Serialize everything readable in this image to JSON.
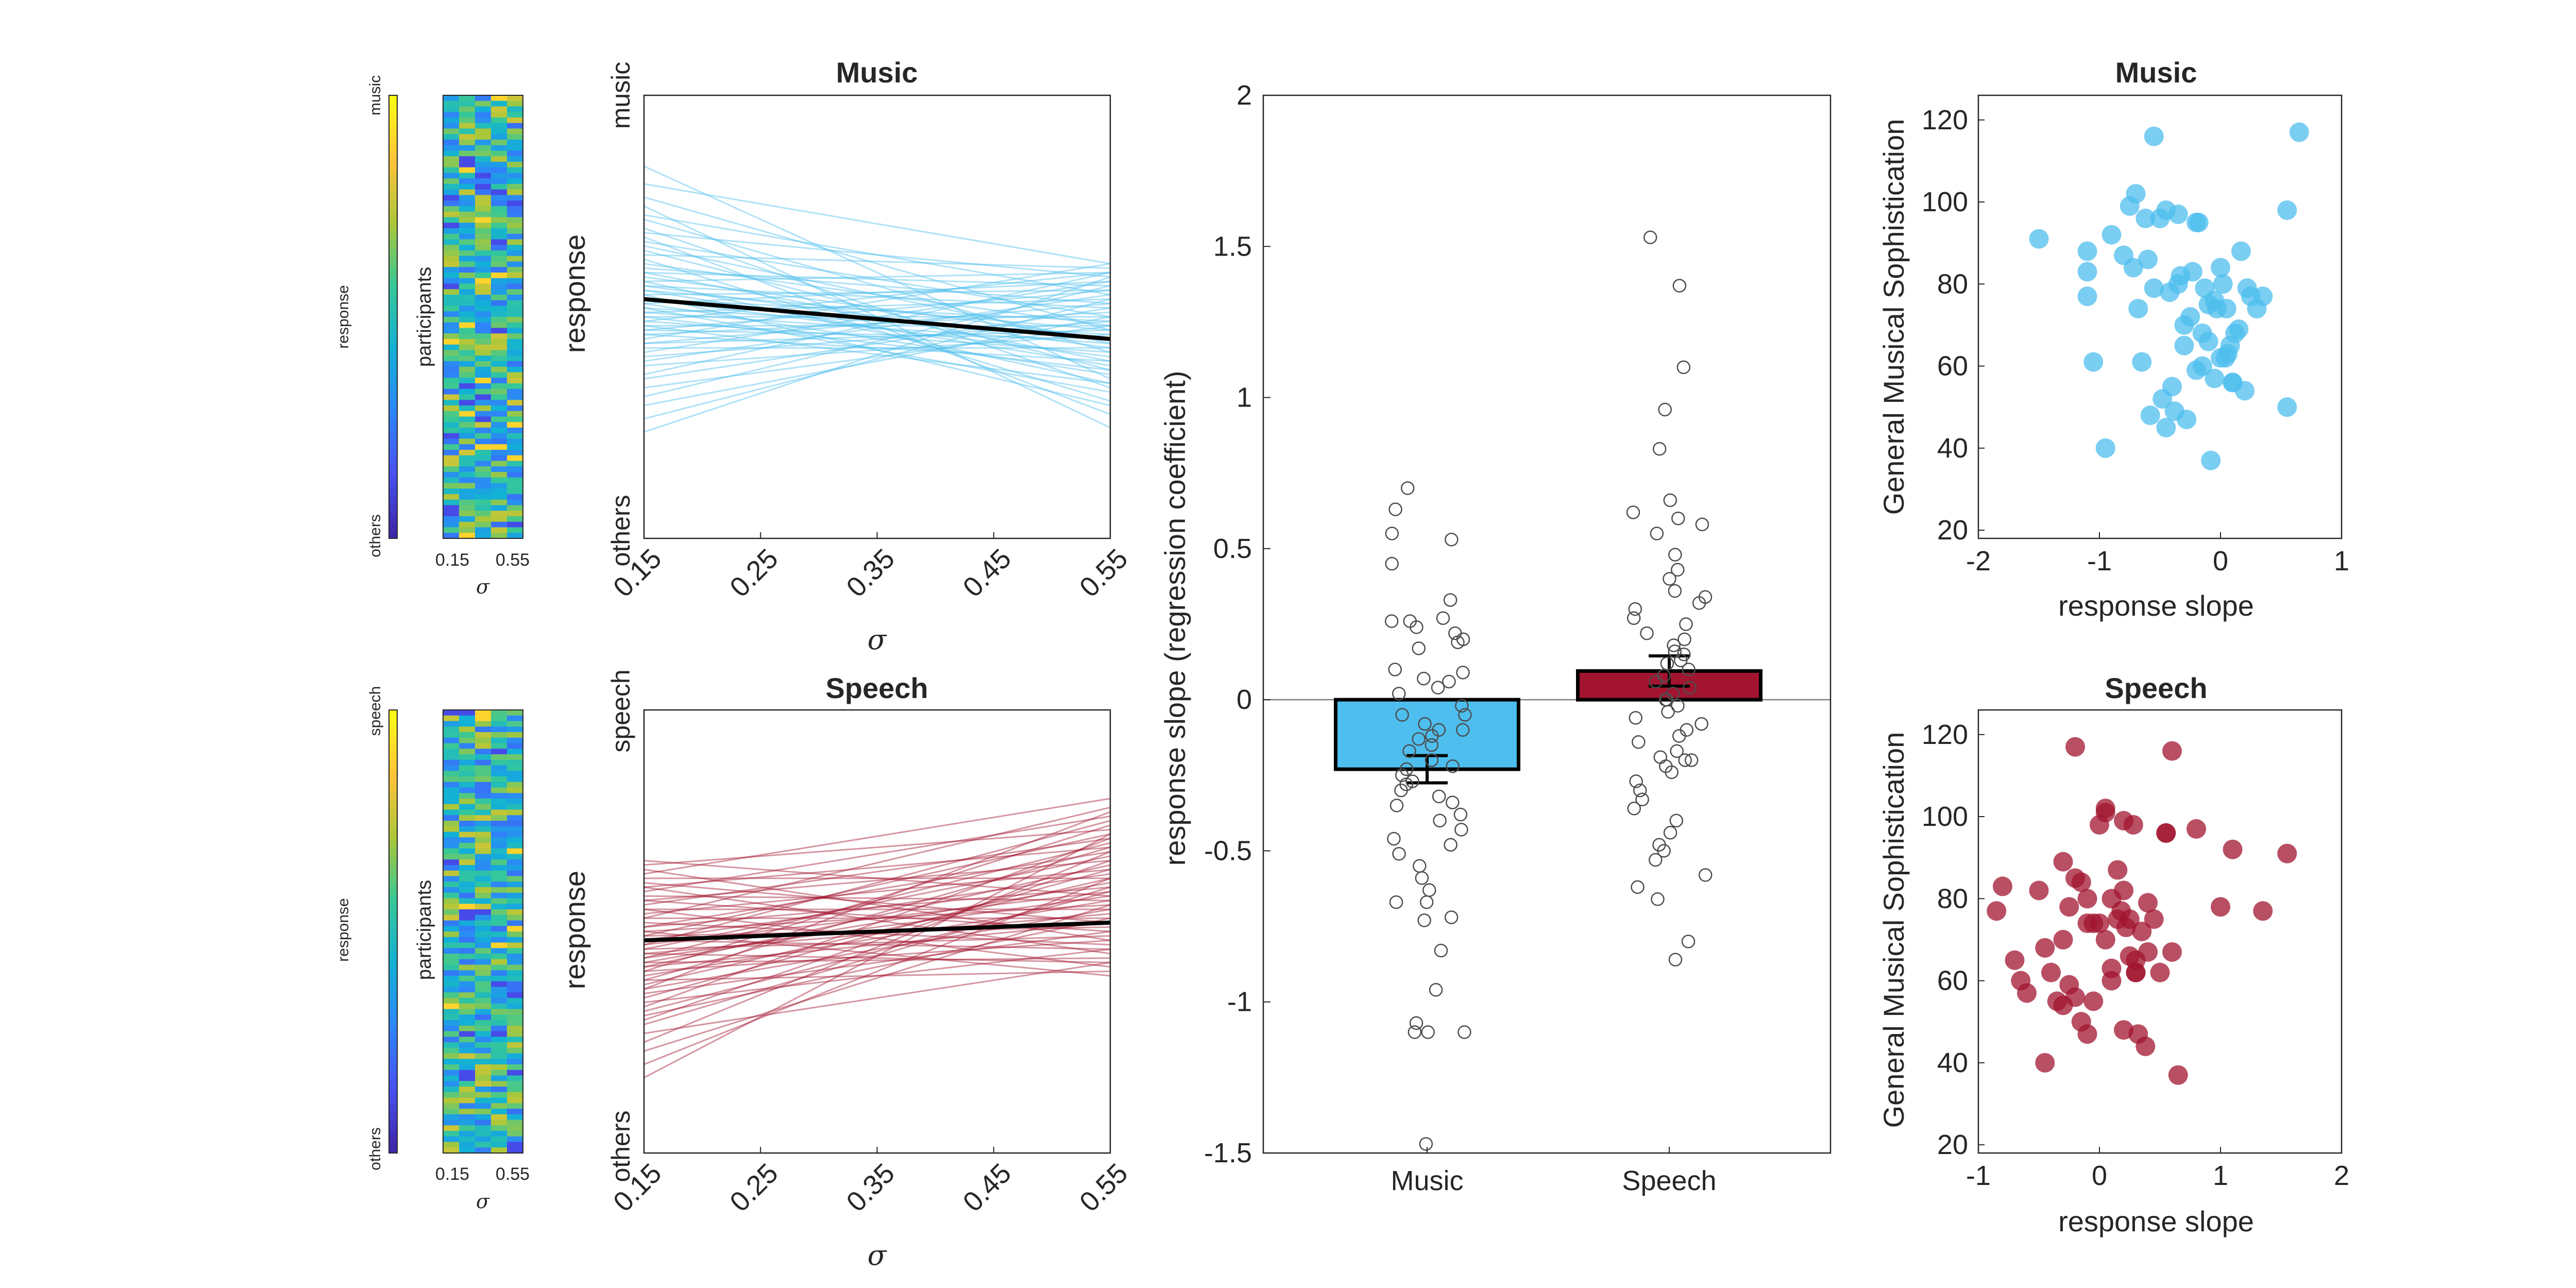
{
  "colors": {
    "music": "#4DBEEE",
    "speech": "#A2142F",
    "axis": "#262626",
    "fit": "#000000"
  },
  "heatmaps": [
    {
      "colorbar_top": "music",
      "colorbar_mid": "response",
      "colorbar_bottom": "others",
      "ylabel": "participants",
      "xticks": [
        "0.15",
        "0.55"
      ],
      "xlabel": "σ",
      "rows": 80,
      "cols": 5,
      "seed": 7
    },
    {
      "colorbar_top": "speech",
      "colorbar_mid": "response",
      "colorbar_bottom": "others",
      "ylabel": "participants",
      "xticks": [
        "0.15",
        "0.55"
      ],
      "xlabel": "σ",
      "rows": 80,
      "cols": 5,
      "seed": 19
    }
  ],
  "chart_data": [
    {
      "type": "line",
      "title": "Music",
      "xlabel": "σ",
      "ylabel": "response",
      "ytick_top": "music",
      "ytick_bottom": "others",
      "xticks": [
        "0.15",
        "0.25",
        "0.35",
        "0.45",
        "0.55"
      ],
      "xlim": [
        0.15,
        0.55
      ],
      "ylim": [
        0,
        1
      ],
      "mean_fit": {
        "x": [
          0.15,
          0.55
        ],
        "y": [
          0.54,
          0.45
        ]
      },
      "participants_y0": [
        0.84,
        0.8,
        0.77,
        0.75,
        0.73,
        0.72,
        0.7,
        0.69,
        0.68,
        0.67,
        0.66,
        0.65,
        0.64,
        0.63,
        0.62,
        0.61,
        0.6,
        0.6,
        0.59,
        0.58,
        0.58,
        0.57,
        0.57,
        0.56,
        0.56,
        0.55,
        0.55,
        0.54,
        0.54,
        0.53,
        0.53,
        0.52,
        0.52,
        0.51,
        0.51,
        0.5,
        0.5,
        0.49,
        0.49,
        0.48,
        0.48,
        0.47,
        0.47,
        0.46,
        0.46,
        0.45,
        0.44,
        0.44,
        0.43,
        0.42,
        0.41,
        0.4,
        0.39,
        0.37,
        0.36,
        0.34,
        0.32,
        0.3,
        0.27,
        0.24
      ],
      "participants_y1": [
        0.36,
        0.62,
        0.47,
        0.25,
        0.55,
        0.42,
        0.34,
        0.59,
        0.28,
        0.5,
        0.44,
        0.38,
        0.61,
        0.31,
        0.48,
        0.53,
        0.4,
        0.57,
        0.45,
        0.35,
        0.6,
        0.43,
        0.52,
        0.39,
        0.47,
        0.3,
        0.56,
        0.41,
        0.49,
        0.37,
        0.58,
        0.46,
        0.33,
        0.54,
        0.44,
        0.5,
        0.38,
        0.6,
        0.42,
        0.48,
        0.35,
        0.56,
        0.45,
        0.51,
        0.4,
        0.62,
        0.47,
        0.53,
        0.43,
        0.58,
        0.49,
        0.55,
        0.46,
        0.6,
        0.52,
        0.48,
        0.57,
        0.5,
        0.54,
        0.59
      ]
    },
    {
      "type": "line",
      "title": "Speech",
      "xlabel": "σ",
      "ylabel": "response",
      "ytick_top": "speech",
      "ytick_bottom": "others",
      "xticks": [
        "0.15",
        "0.25",
        "0.35",
        "0.45",
        "0.55"
      ],
      "xlim": [
        0.15,
        0.55
      ],
      "ylim": [
        0,
        1
      ],
      "mean_fit": {
        "x": [
          0.15,
          0.55
        ],
        "y": [
          0.48,
          0.52
        ]
      },
      "participants_y0": [
        0.66,
        0.65,
        0.64,
        0.63,
        0.62,
        0.61,
        0.6,
        0.6,
        0.59,
        0.58,
        0.57,
        0.57,
        0.56,
        0.55,
        0.55,
        0.54,
        0.53,
        0.53,
        0.52,
        0.51,
        0.51,
        0.5,
        0.5,
        0.49,
        0.49,
        0.48,
        0.48,
        0.47,
        0.47,
        0.46,
        0.46,
        0.45,
        0.45,
        0.44,
        0.44,
        0.43,
        0.43,
        0.42,
        0.42,
        0.41,
        0.41,
        0.4,
        0.39,
        0.39,
        0.38,
        0.37,
        0.37,
        0.36,
        0.35,
        0.34,
        0.33,
        0.32,
        0.31,
        0.3,
        0.29,
        0.27,
        0.25,
        0.23,
        0.2,
        0.17
      ],
      "participants_y1": [
        0.58,
        0.73,
        0.48,
        0.8,
        0.62,
        0.52,
        0.69,
        0.45,
        0.76,
        0.57,
        0.66,
        0.5,
        0.71,
        0.55,
        0.42,
        0.64,
        0.53,
        0.78,
        0.47,
        0.6,
        0.68,
        0.4,
        0.56,
        0.72,
        0.51,
        0.63,
        0.46,
        0.75,
        0.59,
        0.49,
        0.67,
        0.54,
        0.43,
        0.7,
        0.58,
        0.61,
        0.44,
        0.65,
        0.52,
        0.74,
        0.48,
        0.57,
        0.69,
        0.41,
        0.62,
        0.55,
        0.77,
        0.5,
        0.64,
        0.46,
        0.71,
        0.59,
        0.53,
        0.66,
        0.6,
        0.43,
        0.68,
        0.56,
        0.62,
        0.72
      ]
    },
    {
      "type": "bar",
      "categories": [
        "Music",
        "Speech"
      ],
      "values": [
        -0.23,
        0.095
      ],
      "sem": [
        0.045,
        0.05
      ],
      "ylabel": "response slope (regression coefficient)",
      "ylim": [
        -1.5,
        2
      ],
      "yticks": [
        -1.5,
        -1,
        -0.5,
        0,
        0.5,
        1,
        1.5,
        2
      ],
      "points": {
        "Music": [
          0.7,
          0.63,
          0.55,
          0.53,
          0.45,
          0.33,
          0.27,
          0.26,
          0.26,
          0.24,
          0.22,
          0.2,
          0.19,
          0.17,
          0.1,
          0.09,
          0.07,
          0.06,
          0.04,
          0.02,
          -0.02,
          -0.05,
          -0.05,
          -0.08,
          -0.1,
          -0.1,
          -0.12,
          -0.13,
          -0.15,
          -0.17,
          -0.2,
          -0.22,
          -0.23,
          -0.25,
          -0.27,
          -0.28,
          -0.3,
          -0.32,
          -0.34,
          -0.35,
          -0.38,
          -0.4,
          -0.43,
          -0.46,
          -0.48,
          -0.51,
          -0.55,
          -0.59,
          -0.63,
          -0.67,
          -0.67,
          -0.72,
          -0.73,
          -0.83,
          -0.96,
          -1.07,
          -1.1,
          -1.1,
          -1.1,
          -1.47
        ],
        "Speech": [
          1.53,
          1.37,
          1.1,
          0.96,
          0.83,
          0.66,
          0.62,
          0.6,
          0.58,
          0.55,
          0.48,
          0.43,
          0.4,
          0.36,
          0.34,
          0.32,
          0.3,
          0.27,
          0.25,
          0.22,
          0.2,
          0.18,
          0.16,
          0.15,
          0.13,
          0.12,
          0.1,
          0.08,
          0.06,
          0.04,
          0.02,
          0.0,
          -0.02,
          -0.04,
          -0.06,
          -0.08,
          -0.1,
          -0.12,
          -0.14,
          -0.17,
          -0.19,
          -0.2,
          -0.22,
          -0.24,
          -0.27,
          -0.3,
          -0.33,
          -0.36,
          -0.4,
          -0.44,
          -0.48,
          -0.5,
          -0.53,
          -0.58,
          -0.62,
          -0.66,
          -0.8,
          -0.86,
          -0.2,
          0.0
        ]
      }
    },
    {
      "type": "scatter",
      "title": "Music",
      "xlabel": "response slope",
      "ylabel": "General Musical Sophistication",
      "xlim": [
        -2,
        1
      ],
      "ylim": [
        18,
        126
      ],
      "xticks": [
        -2,
        -1,
        0,
        1
      ],
      "yticks": [
        20,
        40,
        60,
        80,
        100,
        120
      ],
      "x": [
        -1.5,
        -1.1,
        -1.1,
        -1.1,
        -1.05,
        -0.95,
        -0.9,
        -0.8,
        -0.75,
        -0.72,
        -0.7,
        -0.68,
        -0.65,
        -0.62,
        -0.6,
        -0.58,
        -0.55,
        -0.5,
        -0.48,
        -0.45,
        -0.42,
        -0.4,
        -0.38,
        -0.35,
        -0.33,
        -0.3,
        -0.28,
        -0.25,
        -0.23,
        -0.2,
        -0.18,
        -0.15,
        -0.13,
        -0.1,
        -0.08,
        -0.05,
        -0.03,
        0.0,
        0.02,
        0.04,
        0.06,
        0.08,
        0.1,
        0.12,
        0.15,
        0.17,
        0.2,
        0.22,
        0.25,
        0.3,
        0.35,
        -0.35,
        -0.55,
        -0.3,
        -0.15,
        0.55,
        0.55,
        0.65,
        -0.1,
        0.0,
        0.1,
        -0.2,
        -0.45,
        0.05,
        -0.05
      ],
      "y": [
        91,
        88,
        83,
        77,
        61,
        40,
        92,
        87,
        99,
        84,
        102,
        74,
        61,
        96,
        86,
        48,
        79,
        96,
        52,
        98,
        78,
        55,
        49,
        80,
        82,
        65,
        47,
        72,
        83,
        95,
        95,
        68,
        79,
        66,
        37,
        76,
        74,
        84,
        80,
        62,
        63,
        65,
        56,
        68,
        69,
        88,
        54,
        79,
        77,
        74,
        77,
        97,
        116,
        70,
        60,
        50,
        98,
        117,
        75,
        62,
        56,
        59,
        45,
        74,
        57
      ]
    },
    {
      "type": "scatter",
      "title": "Speech",
      "xlabel": "response slope",
      "ylabel": "General Musical Sophistication",
      "xlim": [
        -1,
        2
      ],
      "ylim": [
        18,
        126
      ],
      "xticks": [
        -1,
        0,
        1,
        2
      ],
      "yticks": [
        20,
        40,
        60,
        80,
        100,
        120
      ],
      "x": [
        -0.85,
        -0.8,
        -0.7,
        -0.65,
        -0.6,
        -0.5,
        -0.45,
        -0.45,
        -0.4,
        -0.35,
        -0.3,
        -0.3,
        -0.25,
        -0.25,
        -0.2,
        -0.2,
        -0.15,
        -0.15,
        -0.1,
        -0.1,
        -0.05,
        -0.05,
        0.0,
        0.0,
        0.05,
        0.05,
        0.1,
        0.1,
        0.15,
        0.15,
        0.18,
        0.2,
        0.2,
        0.22,
        0.25,
        0.25,
        0.28,
        0.3,
        0.3,
        0.32,
        0.35,
        0.38,
        0.4,
        0.45,
        0.5,
        0.55,
        0.6,
        0.65,
        0.8,
        1.0,
        1.1,
        1.35,
        1.55,
        -0.2,
        0.05,
        0.2,
        0.4,
        0.55,
        0.6,
        -0.3,
        0.1,
        0.3,
        -0.1
      ],
      "y": [
        77,
        83,
        65,
        60,
        57,
        82,
        68,
        40,
        62,
        55,
        70,
        89,
        59,
        78,
        85,
        117,
        50,
        84,
        47,
        80,
        74,
        55,
        98,
        74,
        102,
        70,
        63,
        80,
        87,
        75,
        77,
        48,
        82,
        73,
        75,
        66,
        98,
        62,
        65,
        47,
        72,
        44,
        79,
        75,
        62,
        96,
        116,
        37,
        97,
        78,
        92,
        77,
        91,
        56,
        101,
        99,
        67,
        96,
        67,
        54,
        60,
        62,
        74
      ]
    }
  ]
}
